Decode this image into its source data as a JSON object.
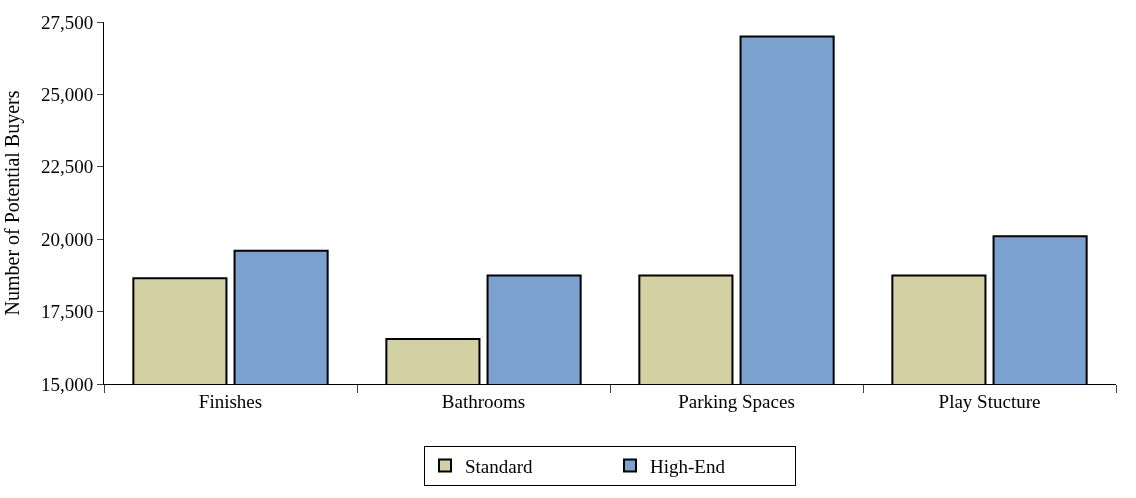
{
  "chart_data": {
    "type": "bar",
    "ylabel": "Number of Potential Buyers",
    "categories": [
      "Finishes",
      "Bathrooms",
      "Parking Spaces",
      "Play Stucture"
    ],
    "series": [
      {
        "name": "Standard",
        "color": "#d3d1a3",
        "values": [
          18650,
          16550,
          18750,
          18750
        ]
      },
      {
        "name": "High-End",
        "color": "#7ba2cf",
        "values": [
          19600,
          18750,
          27000,
          20100
        ]
      }
    ],
    "ylim": [
      15000,
      27500
    ],
    "yticks": [
      {
        "value": 15000,
        "label": "15,000"
      },
      {
        "value": 17500,
        "label": "17,500"
      },
      {
        "value": 20000,
        "label": "20,000"
      },
      {
        "value": 22500,
        "label": "22,500"
      },
      {
        "value": 25000,
        "label": "25,000"
      },
      {
        "value": 27500,
        "label": "27,500"
      }
    ],
    "legend": "bottom"
  }
}
